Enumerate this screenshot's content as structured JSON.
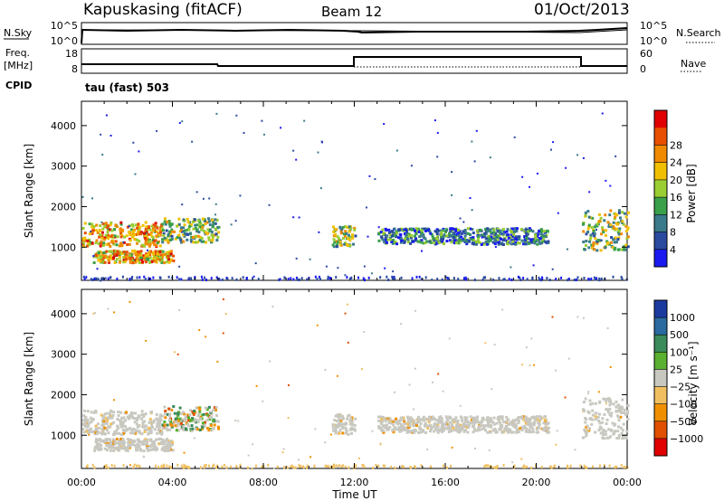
{
  "header": {
    "station": "Kapuskasing (fitACF)",
    "beam": "Beam 12",
    "date": "01/Oct/2013"
  },
  "strip_labels": {
    "nsky": "N.Sky",
    "nsky_ticks": [
      "10^5",
      "10^0"
    ],
    "nsearch": "N.Search",
    "nsearch_ticks": [
      "10^5",
      "10^0"
    ],
    "freq": "Freq.",
    "freq_unit": "[MHz]",
    "freq_ticks": [
      "18",
      "8"
    ],
    "nave": "Nave",
    "nave_ticks": [
      "60",
      "0"
    ],
    "cpid_label": "CPID",
    "cpid_value": "tau (fast) 503"
  },
  "chart_data": [
    {
      "type": "heatmap",
      "title": "",
      "xlabel": "",
      "ylabel": "Slant Range [km]",
      "x_ticks": [
        "00:00",
        "04:00",
        "08:00",
        "12:00",
        "16:00",
        "20:00",
        "00:00"
      ],
      "y_ticks": [
        1000,
        2000,
        3000,
        4000
      ],
      "ylim": [
        180,
        4600
      ],
      "colorbar_label": "Power [dB]",
      "colorbar_ticks": [
        "4",
        "8",
        "12",
        "16",
        "20",
        "24",
        "28"
      ],
      "colorbar_colors": [
        "#1a1af0",
        "#2a4aa0",
        "#3a7a8a",
        "#3aa04a",
        "#9acd32",
        "#f0c000",
        "#f08a00",
        "#e85000",
        "#e00000"
      ],
      "echo_regions": [
        {
          "t_start": 0.0,
          "t_end": 3.5,
          "range_start": 1000,
          "range_end": 1600,
          "level": "high"
        },
        {
          "t_start": 0.5,
          "t_end": 4.0,
          "range_start": 600,
          "range_end": 900,
          "level": "high"
        },
        {
          "t_start": 3.5,
          "t_end": 6.0,
          "range_start": 1100,
          "range_end": 1700,
          "level": "medium"
        },
        {
          "t_start": 11.0,
          "t_end": 12.0,
          "range_start": 1000,
          "range_end": 1500,
          "level": "medium"
        },
        {
          "t_start": 13.0,
          "t_end": 20.5,
          "range_start": 1050,
          "range_end": 1450,
          "level": "low"
        },
        {
          "t_start": 22.0,
          "t_end": 24.0,
          "range_start": 900,
          "range_end": 1900,
          "level": "medium"
        }
      ]
    },
    {
      "type": "heatmap",
      "title": "",
      "xlabel": "Time UT",
      "ylabel": "Slant Range [km]",
      "x_ticks": [
        "00:00",
        "04:00",
        "08:00",
        "12:00",
        "16:00",
        "20:00",
        "00:00"
      ],
      "y_ticks": [
        1000,
        2000,
        3000,
        4000
      ],
      "ylim": [
        180,
        4600
      ],
      "colorbar_label": "Velocity [m s⁻¹]",
      "colorbar_ticks": [
        "1000",
        "500",
        "100",
        "25",
        "−25",
        "−100",
        "−500",
        "−1000"
      ],
      "colorbar_colors": [
        "#1a3aa0",
        "#2a6aa0",
        "#3a8a5a",
        "#5ab030",
        "#c8c8c0",
        "#f0c060",
        "#f09000",
        "#e05000",
        "#e00000"
      ],
      "echo_regions": [
        {
          "t_start": 0.0,
          "t_end": 3.5,
          "range_start": 1000,
          "range_end": 1600,
          "level": "ground"
        },
        {
          "t_start": 0.5,
          "t_end": 4.0,
          "range_start": 600,
          "range_end": 900,
          "level": "ground"
        },
        {
          "t_start": 3.5,
          "t_end": 6.0,
          "range_start": 1100,
          "range_end": 1700,
          "level": "mixed"
        },
        {
          "t_start": 11.0,
          "t_end": 12.0,
          "range_start": 1000,
          "range_end": 1500,
          "level": "ground"
        },
        {
          "t_start": 13.0,
          "t_end": 20.5,
          "range_start": 1050,
          "range_end": 1450,
          "level": "ground"
        },
        {
          "t_start": 22.0,
          "t_end": 24.0,
          "range_start": 900,
          "range_end": 1900,
          "level": "ground"
        }
      ]
    }
  ]
}
